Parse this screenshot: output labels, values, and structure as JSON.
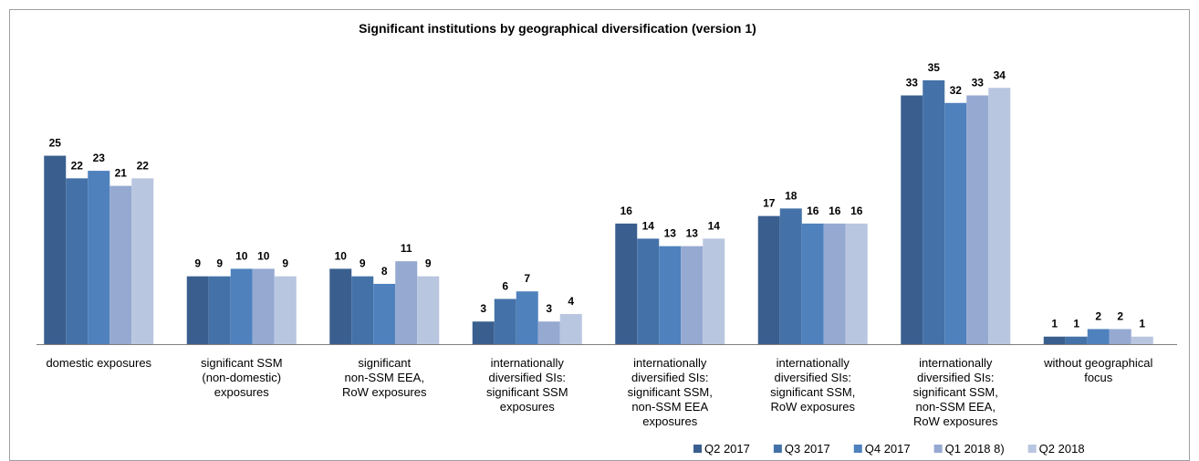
{
  "chart_data": {
    "type": "bar",
    "title": "Significant institutions by geographical diversification (version 1)",
    "categories": [
      "domestic exposures",
      "significant SSM\n(non-domestic)\nexposures",
      "significant\nnon-SSM EEA,\nRoW exposures",
      "internationally\ndiversified SIs:\nsignificant SSM\nexposures",
      "internationally\ndiversified SIs:\nsignificant SSM,\nnon-SSM EEA\nexposures",
      "internationally\ndiversified SIs:\nsignificant SSM,\nRoW exposures",
      "internationally\ndiversified SIs:\nsignificant SSM,\nnon-SSM EEA,\nRoW exposures",
      "without geographical\nfocus"
    ],
    "series": [
      {
        "name": "Q2 2017",
        "color": "#3a5f8f",
        "values": [
          25,
          9,
          10,
          3,
          16,
          17,
          33,
          1
        ]
      },
      {
        "name": "Q3 2017",
        "color": "#4472a8",
        "values": [
          22,
          9,
          9,
          6,
          14,
          18,
          35,
          1
        ]
      },
      {
        "name": "Q4 2017",
        "color": "#4f81bd",
        "values": [
          23,
          10,
          8,
          7,
          13,
          16,
          32,
          2
        ]
      },
      {
        "name": "Q1 2018 8)",
        "color": "#95a9d1",
        "values": [
          21,
          10,
          11,
          3,
          13,
          16,
          33,
          2
        ]
      },
      {
        "name": "Q2 2018",
        "color": "#b9c6e0",
        "values": [
          22,
          9,
          9,
          4,
          14,
          16,
          34,
          1
        ]
      }
    ],
    "legend": "bottom-right"
  }
}
